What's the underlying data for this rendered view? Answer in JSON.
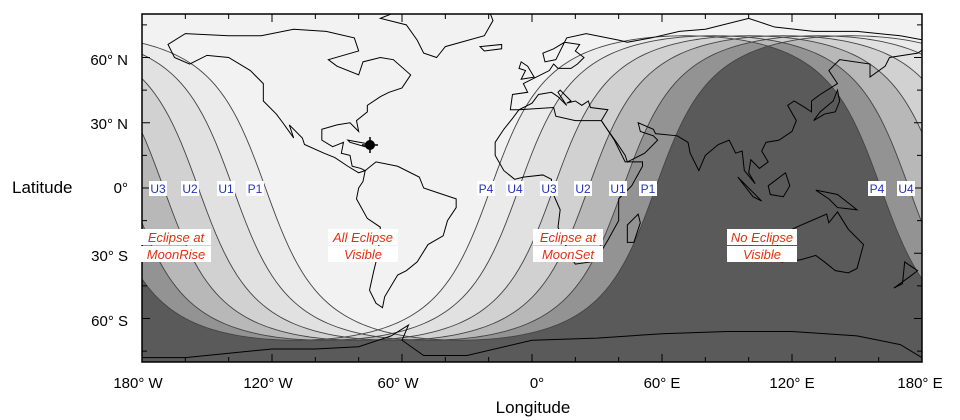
{
  "axes": {
    "ylabel": "Latitude",
    "xlabel": "Longitude",
    "lat_ticks": [
      "60° N",
      "30° N",
      "0°",
      "30° S",
      "60° S"
    ],
    "lon_ticks": [
      "180° W",
      "120° W",
      "60° W",
      "0°",
      "60° E",
      "120° E",
      "180° E"
    ]
  },
  "contacts_west": [
    "U3",
    "U2",
    "U1",
    "P1"
  ],
  "contacts_east": [
    "P4",
    "U4",
    "U3",
    "U2",
    "U1",
    "P1"
  ],
  "contacts_far_east": [
    "P4",
    "U4"
  ],
  "regions": [
    {
      "line1": "Eclipse at",
      "line2": "MoonRise"
    },
    {
      "line1": "All Eclipse",
      "line2": "Visible"
    },
    {
      "line1": "Eclipse at",
      "line2": "MoonSet"
    },
    {
      "line1": "No Eclipse",
      "line2": "Visible"
    }
  ],
  "colors": {
    "no_eclipse": "#5a5a5a",
    "all_visible": "#ffffff",
    "contact_label": "#2233bb",
    "region_label": "#e03010"
  }
}
